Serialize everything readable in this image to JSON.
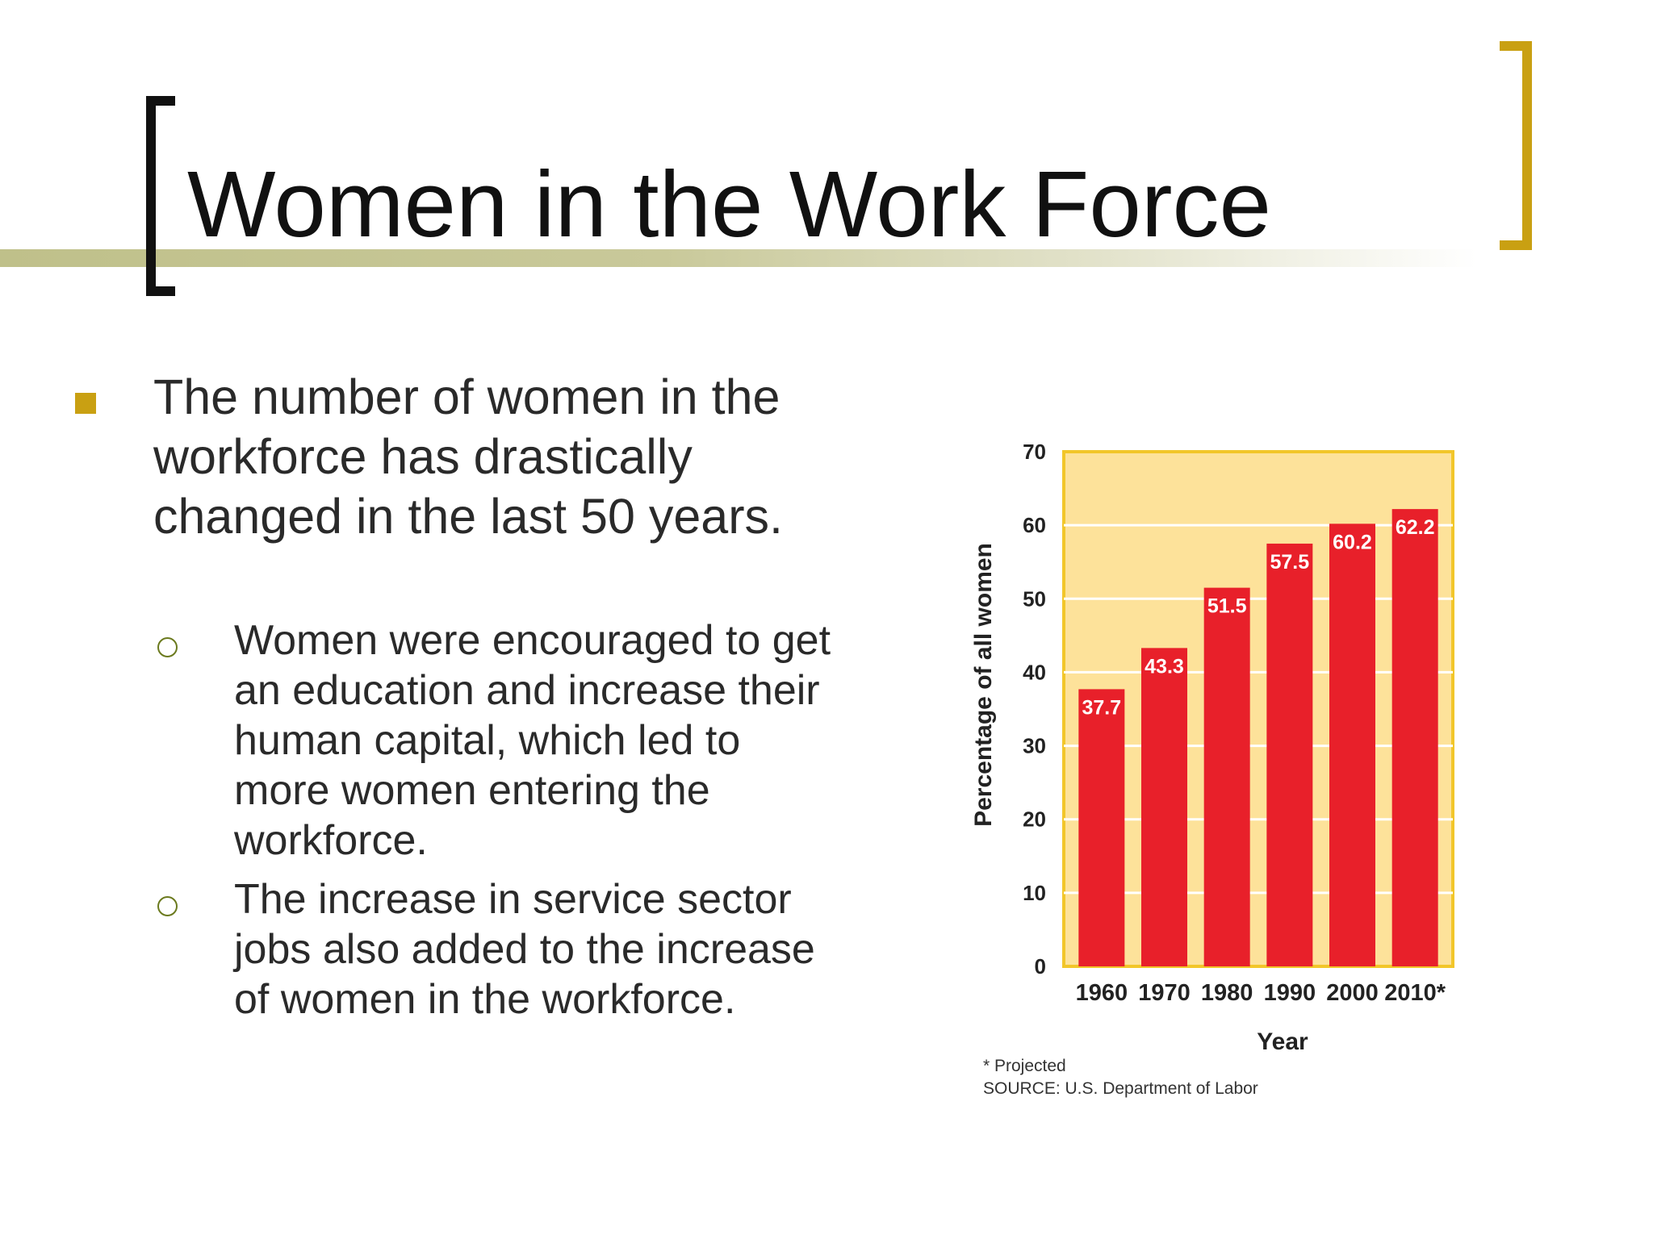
{
  "slide": {
    "title": "Women in the Work Force",
    "main_bullet": "The number of women in the workforce has drastically changed in the last 50 years.",
    "sub_bullets": [
      "Women were encouraged to get an education and increase their human capital, which led to more women entering the workforce.",
      "The increase in service sector jobs also added to the increase of women in the workforce."
    ]
  },
  "colors": {
    "accent": "#c9a012",
    "bar": "#e8202a",
    "plot_background": "#fde29a",
    "plot_border": "#f2c62a"
  },
  "chart_data": {
    "type": "bar",
    "categories": [
      "1960",
      "1970",
      "1980",
      "1990",
      "2000",
      "2010*"
    ],
    "values": [
      37.7,
      43.3,
      51.5,
      57.5,
      60.2,
      62.2
    ],
    "value_labels": [
      "37.7",
      "43.3",
      "51.5",
      "57.5",
      "60.2",
      "62.2"
    ],
    "xlabel": "Year",
    "ylabel": "Percentage of all women",
    "ylim": [
      0,
      70
    ],
    "yticks": [
      "0",
      "10",
      "20",
      "30",
      "40",
      "50",
      "60",
      "70"
    ],
    "grid": true,
    "notes": [
      "* Projected",
      "SOURCE: U.S. Department of Labor"
    ]
  }
}
